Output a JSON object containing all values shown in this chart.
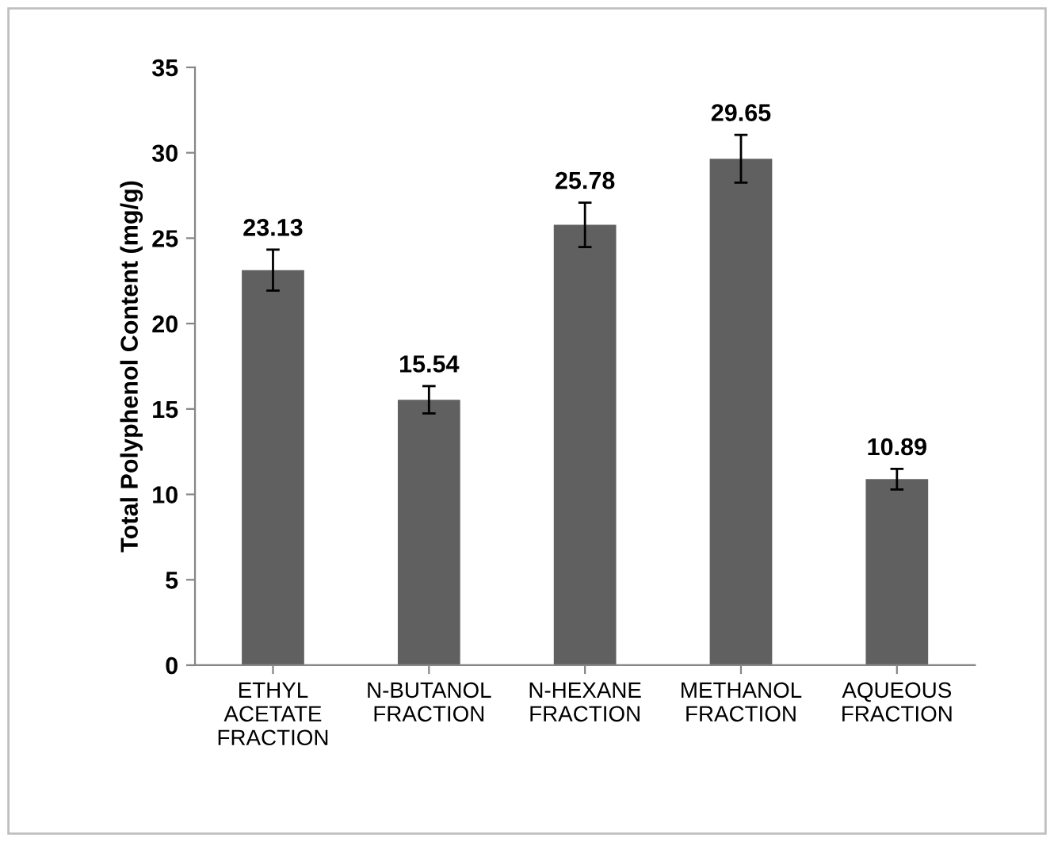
{
  "chart_data": {
    "type": "bar",
    "ylabel": "Total Polyphenol Content (mg/g)",
    "categories": [
      "ETHYL\nACETATE\nFRACTION",
      "N-BUTANOL\nFRACTION",
      "N-HEXANE\nFRACTION",
      "METHANOL\nFRACTION",
      "AQUEOUS\nFRACTION"
    ],
    "values": [
      23.13,
      15.54,
      25.78,
      29.65,
      10.89
    ],
    "errors": [
      1.2,
      0.8,
      1.3,
      1.4,
      0.6
    ],
    "color": "#606060",
    "ylim": [
      0,
      35
    ],
    "yticks": [
      0,
      5,
      10,
      15,
      20,
      25,
      30,
      35
    ],
    "data_labels": true,
    "grid": false,
    "legend": false
  }
}
